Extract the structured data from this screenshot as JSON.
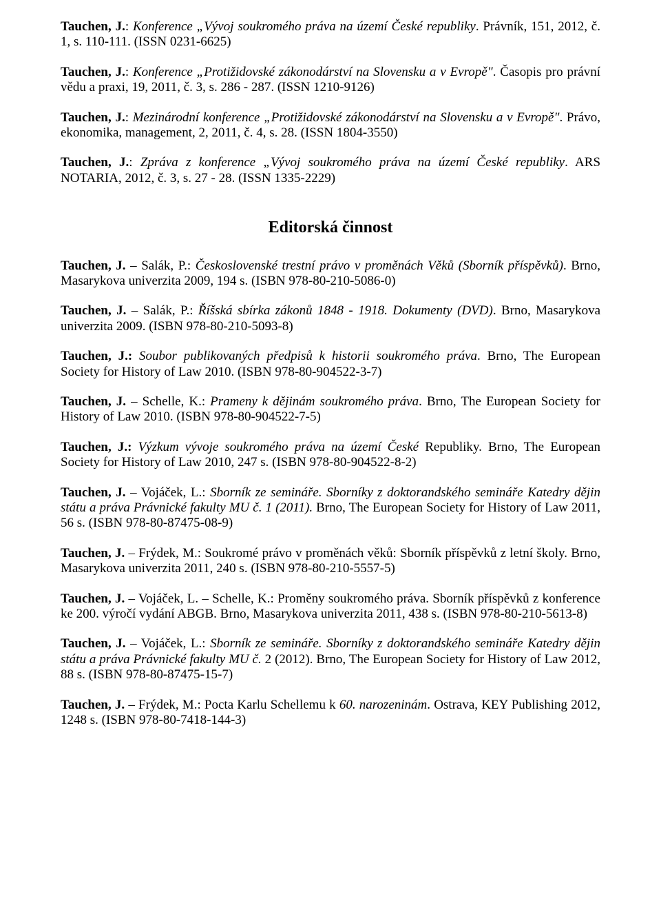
{
  "headingEditorial": "Editorská činnost",
  "entries_top": [
    {
      "author": "Tauchen, J.",
      "title": "Konference „Vývoj soukromého práva na území České republiky",
      "rest": ". Právník, 151, 2012, č. 1, s. 110-111. (ISSN 0231-6625)"
    },
    {
      "author": "Tauchen, J.",
      "title_prefix": ": ",
      "title": "Konference „Protižidovské zákonodárství na Slovensku a v Evropě\"",
      "rest": ". Časopis pro právní vědu a praxi, 19, 2011, č. 3, s. 286 - 287. (ISSN 1210-9126)"
    },
    {
      "author": "Tauchen, J.",
      "title_prefix": ": ",
      "title": "Mezinárodní konference „Protižidovské zákonodárství na Slovensku a v Evropě\"",
      "rest": ". Právo, ekonomika, management, 2, 2011, č. 4, s. 28. (ISSN 1804-3550)"
    },
    {
      "author": "Tauchen, J.",
      "title_prefix": ": ",
      "title": "Zpráva z konference „Vývoj soukromého práva na území České republiky",
      "rest": ". ARS NOTARIA, 2012, č. 3, s. 27 - 28. (ISSN 1335-2229)"
    }
  ],
  "entries_editorial": [
    {
      "authors": "Tauchen, J. – Salák, P.: ",
      "title": "Československé trestní právo v proměnách Věků (Sborník příspěvků)",
      "rest": ". Brno, Masarykova univerzita 2009, 194 s. (ISBN 978-80-210-5086-0)"
    },
    {
      "authors": "Tauchen, J. – Salák, P.: ",
      "title": "Říšská sbírka zákonů 1848 - 1918. Dokumenty (DVD)",
      "rest": ". Brno, Masarykova univerzita 2009. (ISBN 978-80-210-5093-8)"
    },
    {
      "authors": "Tauchen, J.: ",
      "title": "Soubor publikovaných předpisů k historii soukromého práva",
      "rest": ". Brno, The European Society for History of Law 2010. (ISBN 978-80-904522-3-7)"
    },
    {
      "authors": "Tauchen, J. – Schelle, K.: ",
      "title": "Prameny k dějinám soukromého práva",
      "rest": ". Brno, The European Society for History of Law 2010. (ISBN 978-80-904522-7-5)"
    },
    {
      "authors": "Tauchen, J.: ",
      "title": "Výzkum vývoje soukromého práva na území České ",
      "rest_before": "Republiky. Brno, The European Society for History of Law 2010, 247 s. (ISBN 978-80-904522-8-2)"
    },
    {
      "authors": "Tauchen, J. – Vojáček, L.: ",
      "title": "Sborník ze semináře. Sborníky z doktorandského semináře Katedry dějin státu a práva Právnické fakulty MU č. 1 (2011).",
      "rest": " Brno, The European Society for History of Law 2011, 56 s. (ISBN 978-80-87475-08-9)"
    },
    {
      "authors": "Tauchen, J. – Frýdek, M.",
      "plain": ": Soukromé právo v proměnách věků: Sborník příspěvků z letní školy. Brno, Masarykova univerzita 2011, 240 s. (ISBN 978-80-210-5557-5)"
    },
    {
      "authors": "Tauchen, J. – Vojáček, L. – Schelle, K.",
      "plain": ": Proměny soukromého práva. Sborník příspěvků z konference ke 200. výročí vydání ABGB. Brno, Masarykova univerzita 2011, 438 s. (ISBN 978-80-210-5613-8)"
    },
    {
      "authors": "Tauchen, J. – Vojáček, L.: ",
      "title": "Sborník ze semináře. Sborníky z doktorandského semináře Katedry dějin státu a práva Právnické fakulty MU č.",
      "rest": " 2 (2012). Brno, The European Society for History of Law 2012, 88 s. (ISBN 978-80-87475-15-7)"
    },
    {
      "authors": "Tauchen, J. – Frýdek, M.",
      "plain_prefix": ": Pocta Karlu Schellemu k ",
      "title": "60. narozeninám",
      "rest": ". Ostrava, KEY Publishing 2012, 1248 s. (ISBN 978-80-7418-144-3)"
    }
  ]
}
